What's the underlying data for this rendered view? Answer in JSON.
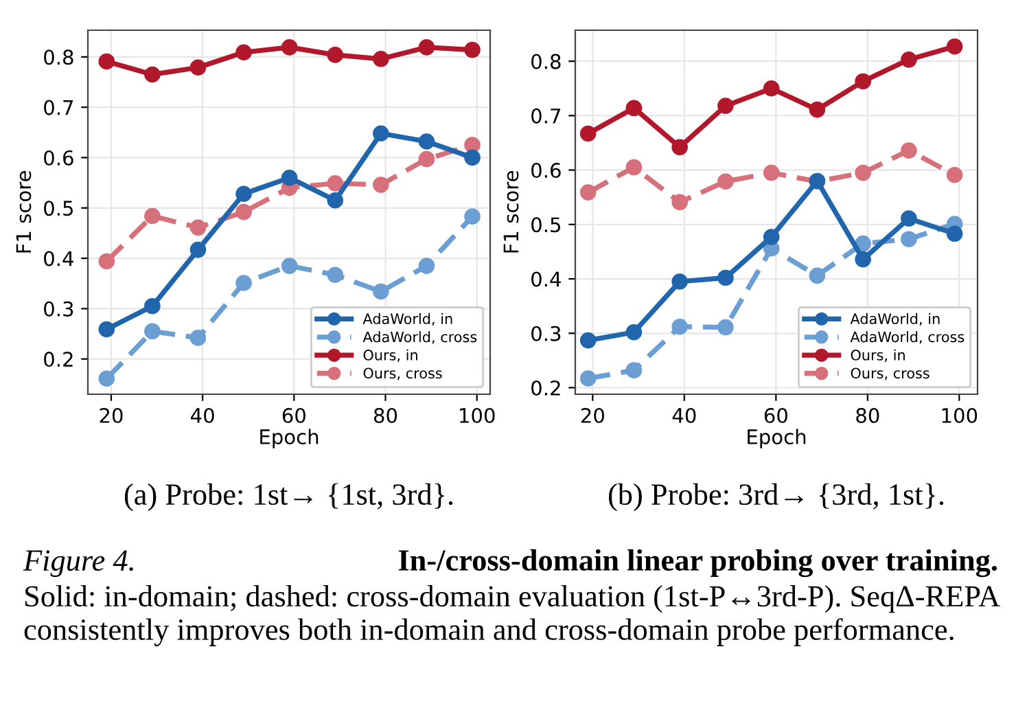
{
  "chart_data": [
    {
      "type": "line",
      "xlabel": "Epoch",
      "ylabel": "F1 score",
      "x": [
        19,
        29,
        39,
        49,
        59,
        69,
        79,
        89,
        99
      ],
      "xlim": [
        14.9,
        102.9
      ],
      "ylim": [
        0.13,
        0.853
      ],
      "xticks": [
        20,
        40,
        60,
        80,
        100
      ],
      "yticks": [
        0.2,
        0.3,
        0.4,
        0.5,
        0.6,
        0.7,
        0.8
      ],
      "marker": "circle",
      "grid": true,
      "legend": "bottom right",
      "series": [
        {
          "name": "AdaWorld, in",
          "color": "#2166ac",
          "line_style": "solid",
          "values": [
            0.259,
            0.305,
            0.417,
            0.528,
            0.56,
            0.515,
            0.648,
            0.632,
            0.6
          ]
        },
        {
          "name": "AdaWorld, cross",
          "color": "#6b9ed2",
          "line_style": "dashed",
          "values": [
            0.161,
            0.255,
            0.242,
            0.351,
            0.385,
            0.367,
            0.334,
            0.385,
            0.483
          ]
        },
        {
          "name": "Ours, in",
          "color": "#b2182b",
          "line_style": "solid",
          "values": [
            0.791,
            0.765,
            0.779,
            0.809,
            0.819,
            0.804,
            0.796,
            0.819,
            0.814
          ]
        },
        {
          "name": "Ours, cross",
          "color": "#d6707b",
          "line_style": "dashed",
          "values": [
            0.394,
            0.484,
            0.461,
            0.492,
            0.54,
            0.549,
            0.546,
            0.597,
            0.625
          ]
        }
      ],
      "annotations": [
        "(a) Probe: 1st→ {1st, 3rd}.",
        "Figure 4.",
        "In-/cross-domain linear probing over training.",
        "Solid: in-domain; dashed: cross-domain evaluation (1st-P↔3rd-P). SeqΔ-REPA consistently improves both in-domain and cross-domain probe performance."
      ]
    },
    {
      "type": "line",
      "xlabel": "Epoch",
      "ylabel": "F1 score",
      "x": [
        19,
        29,
        39,
        49,
        59,
        69,
        79,
        89,
        99
      ],
      "xlim": [
        16.2,
        104
      ],
      "ylim": [
        0.188,
        0.857
      ],
      "xticks": [
        20,
        40,
        60,
        80,
        100
      ],
      "yticks": [
        0.2,
        0.3,
        0.4,
        0.5,
        0.6,
        0.7,
        0.8
      ],
      "marker": "circle",
      "grid": true,
      "legend": "bottom right",
      "series": [
        {
          "name": "AdaWorld, in",
          "color": "#2166ac",
          "line_style": "solid",
          "values": [
            0.287,
            0.302,
            0.395,
            0.402,
            0.477,
            0.58,
            0.436,
            0.511,
            0.483
          ]
        },
        {
          "name": "AdaWorld, cross",
          "color": "#6b9ed2",
          "line_style": "dashed",
          "values": [
            0.217,
            0.232,
            0.312,
            0.311,
            0.456,
            0.406,
            0.465,
            0.473,
            0.501
          ]
        },
        {
          "name": "Ours, in",
          "color": "#b2182b",
          "line_style": "solid",
          "values": [
            0.667,
            0.714,
            0.642,
            0.718,
            0.75,
            0.711,
            0.763,
            0.803,
            0.827
          ]
        },
        {
          "name": "Ours, cross",
          "color": "#d6707b",
          "line_style": "dashed",
          "values": [
            0.559,
            0.605,
            0.541,
            0.579,
            0.595,
            0.579,
            0.595,
            0.636,
            0.591
          ]
        }
      ],
      "annotations": [
        "(b) Probe: 3rd→ {3rd, 1st}."
      ]
    }
  ]
}
